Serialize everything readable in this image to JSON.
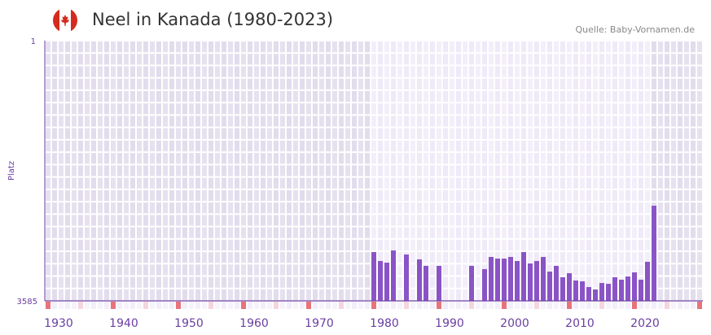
{
  "header": {
    "title": "Neel in Kanada (1980-2023)",
    "source": "Quelle: Baby-Vornamen.de",
    "flag_icon": "canada-flag-icon"
  },
  "colors": {
    "bar": "#8a54c6",
    "axis": "#6a3ea1",
    "decade_marker": "#e8737a",
    "half_decade_marker": "#f5d5de",
    "label": "#6a3ea1"
  },
  "chart_data": {
    "type": "bar",
    "title": "Neel in Kanada (1980-2023)",
    "xlabel": "",
    "ylabel": "Platz",
    "ylim": [
      3585,
      1
    ],
    "y_ticks": [
      "1",
      "3585"
    ],
    "xlim": [
      1929.5,
      2030.5
    ],
    "x_ticks": [
      "1930",
      "1940",
      "1950",
      "1960",
      "1970",
      "1980",
      "1990",
      "2000",
      "2010",
      "2020"
    ],
    "active_range": [
      1980,
      2023
    ],
    "x": [
      1980,
      1981,
      1982,
      1983,
      1985,
      1987,
      1988,
      1990,
      1995,
      1997,
      1998,
      1999,
      2000,
      2001,
      2002,
      2003,
      2004,
      2005,
      2006,
      2007,
      2008,
      2009,
      2010,
      2011,
      2012,
      2013,
      2014,
      2015,
      2016,
      2017,
      2018,
      2019,
      2020,
      2021,
      2022,
      2023
    ],
    "values": [
      2913,
      3036,
      3059,
      2891,
      2947,
      3014,
      3103,
      3103,
      3103,
      3148,
      2980,
      3003,
      3003,
      2980,
      3036,
      2913,
      3070,
      3036,
      2980,
      3182,
      3103,
      3260,
      3204,
      3305,
      3316,
      3395,
      3428,
      3339,
      3350,
      3260,
      3294,
      3249,
      3193,
      3294,
      3047,
      2275
    ]
  }
}
